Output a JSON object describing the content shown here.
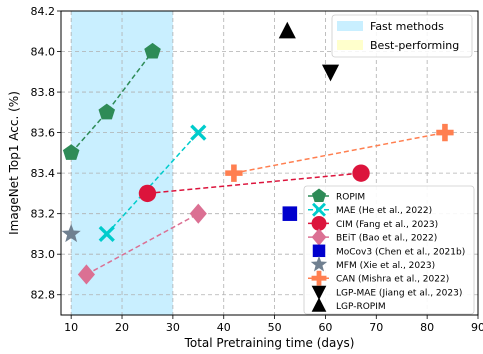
{
  "chart_data": {
    "type": "scatter",
    "xlabel": "Total Pretraining time (days)",
    "ylabel": "ImageNet Top1 Acc. (%)",
    "xlim": [
      8,
      90
    ],
    "ylim": [
      82.7,
      84.2
    ],
    "xticks": [
      "10",
      "20",
      "30",
      "40",
      "50",
      "60",
      "70",
      "80",
      "90"
    ],
    "yticks": [
      "82.8",
      "83.0",
      "83.2",
      "83.4",
      "83.6",
      "83.8",
      "84.0",
      "84.2"
    ],
    "grid": true,
    "shaded_region": {
      "label": "Fast methods",
      "x": [
        10,
        30
      ],
      "color": "#c9efff"
    },
    "best_region_label": "Best-performing",
    "best_region_color": "#ffffcc",
    "legend_region_placement": "top-right",
    "legend_series_placement": "lower-right",
    "series": [
      {
        "name": "ROPIM",
        "color": "#2e8b57",
        "marker": "pentagon",
        "line": true,
        "points": [
          [
            10,
            83.5
          ],
          [
            17,
            83.7
          ],
          [
            26,
            84.0
          ]
        ]
      },
      {
        "name": "MAE (He et al., 2022)",
        "color": "#00cccc",
        "marker": "x",
        "line": true,
        "points": [
          [
            17,
            83.1
          ],
          [
            35,
            83.6
          ]
        ]
      },
      {
        "name": "CIM (Fang et al., 2023)",
        "color": "#dc143c",
        "marker": "circle",
        "line": true,
        "points": [
          [
            25,
            83.3
          ],
          [
            67,
            83.4
          ]
        ]
      },
      {
        "name": "BEiT (Bao et al., 2022)",
        "color": "#db7093",
        "marker": "diamond",
        "line": true,
        "points": [
          [
            13,
            82.9
          ],
          [
            35,
            83.2
          ]
        ]
      },
      {
        "name": "MoCov3 (Chen et al., 2021b)",
        "color": "#0000cd",
        "marker": "square",
        "line": false,
        "points": [
          [
            53,
            83.2
          ]
        ]
      },
      {
        "name": "MFM (Xie et al., 2023)",
        "color": "#708090",
        "marker": "star",
        "line": false,
        "points": [
          [
            10,
            83.1
          ]
        ]
      },
      {
        "name": "CAN (Mishra et al., 2022)",
        "color": "#ff7f50",
        "marker": "plus",
        "line": true,
        "points": [
          [
            42,
            83.4
          ],
          [
            83.5,
            83.6
          ]
        ]
      },
      {
        "name": "LGP-MAE (Jiang et al., 2023)",
        "color": "#000000",
        "marker": "triangle-down",
        "line": false,
        "points": [
          [
            61,
            83.9
          ]
        ]
      },
      {
        "name": "LGP-ROPIM",
        "color": "#000000",
        "marker": "triangle-up",
        "line": false,
        "points": [
          [
            52.5,
            84.1
          ]
        ]
      }
    ]
  }
}
